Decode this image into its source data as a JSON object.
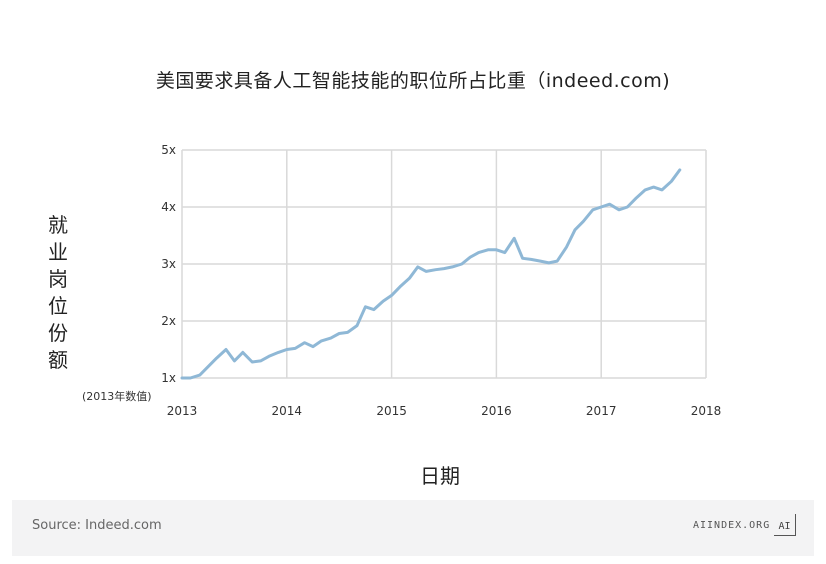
{
  "chart_data": {
    "type": "line",
    "title": "美国要求具备人工智能技能的职位所占比重（indeed.com)",
    "xlabel": "日期",
    "ylabel": "就业岗位份额",
    "y_base_note": "(2013年数值)",
    "xlim": [
      2013,
      2018
    ],
    "ylim": [
      1,
      5
    ],
    "x_ticks": [
      "2013",
      "2014",
      "2015",
      "2016",
      "2017",
      "2018"
    ],
    "y_ticks": [
      "1x",
      "2x",
      "3x",
      "4x",
      "5x"
    ],
    "grid": true,
    "line_color": "#8fb8d6",
    "series": [
      {
        "x": [
          2013.0,
          2013.08,
          2013.17,
          2013.25,
          2013.33,
          2013.42,
          2013.5,
          2013.58,
          2013.67,
          2013.75,
          2013.83,
          2013.92,
          2014.0,
          2014.08,
          2014.17,
          2014.25,
          2014.33,
          2014.42,
          2014.5,
          2014.58,
          2014.67,
          2014.75,
          2014.83,
          2014.92,
          2015.0,
          2015.08,
          2015.17,
          2015.25,
          2015.33,
          2015.42,
          2015.5,
          2015.58,
          2015.67,
          2015.75,
          2015.83,
          2015.92,
          2016.0,
          2016.08,
          2016.17,
          2016.25,
          2016.33,
          2016.42,
          2016.5,
          2016.58,
          2016.67,
          2016.75,
          2016.83,
          2016.92,
          2017.0,
          2017.08,
          2017.17,
          2017.25,
          2017.33,
          2017.42,
          2017.5,
          2017.58,
          2017.67,
          2017.75
        ],
        "values": [
          1.0,
          1.0,
          1.05,
          1.2,
          1.35,
          1.5,
          1.3,
          1.45,
          1.28,
          1.3,
          1.38,
          1.45,
          1.5,
          1.52,
          1.62,
          1.55,
          1.65,
          1.7,
          1.78,
          1.8,
          1.92,
          2.25,
          2.2,
          2.35,
          2.45,
          2.6,
          2.75,
          2.95,
          2.87,
          2.9,
          2.92,
          2.95,
          3.0,
          3.12,
          3.2,
          3.25,
          3.25,
          3.2,
          3.45,
          3.1,
          3.08,
          3.05,
          3.02,
          3.05,
          3.3,
          3.6,
          3.75,
          3.95,
          4.0,
          4.05,
          3.95,
          4.0,
          4.15,
          4.3,
          4.35,
          4.3,
          4.45,
          4.65
        ]
      }
    ]
  },
  "footer": {
    "source": "Source: Indeed.com",
    "brand": "AIINDEX.ORG",
    "logo_text": "AI"
  }
}
